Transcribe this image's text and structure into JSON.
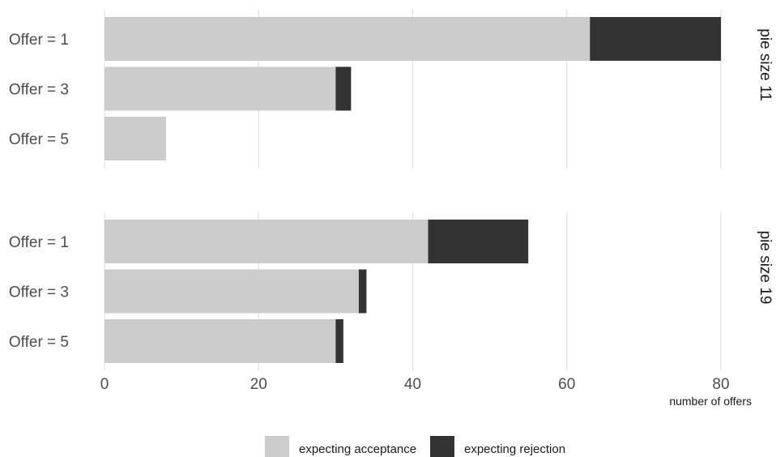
{
  "chart_data": {
    "type": "bar",
    "orientation": "horizontal",
    "stacked": true,
    "xlabel": "number of offers",
    "xlim": [
      0,
      80
    ],
    "x_ticks": [
      0,
      20,
      40,
      60,
      80
    ],
    "grid": "vertical",
    "legend_position": "bottom",
    "series": [
      {
        "name": "expecting acceptance",
        "color": "#cccccc"
      },
      {
        "name": "expecting rejection",
        "color": "#333333"
      }
    ],
    "panels": [
      {
        "label": "pie size 11",
        "categories": [
          "Offer = 1",
          "Offer = 3",
          "Offer = 5"
        ],
        "values": {
          "expecting acceptance": [
            63,
            30,
            8
          ],
          "expecting rejection": [
            17,
            2,
            0
          ]
        }
      },
      {
        "label": "pie size 19",
        "categories": [
          "Offer = 1",
          "Offer = 3",
          "Offer = 5"
        ],
        "values": {
          "expecting acceptance": [
            42,
            33,
            30
          ],
          "expecting rejection": [
            13,
            1,
            1
          ]
        }
      }
    ]
  }
}
